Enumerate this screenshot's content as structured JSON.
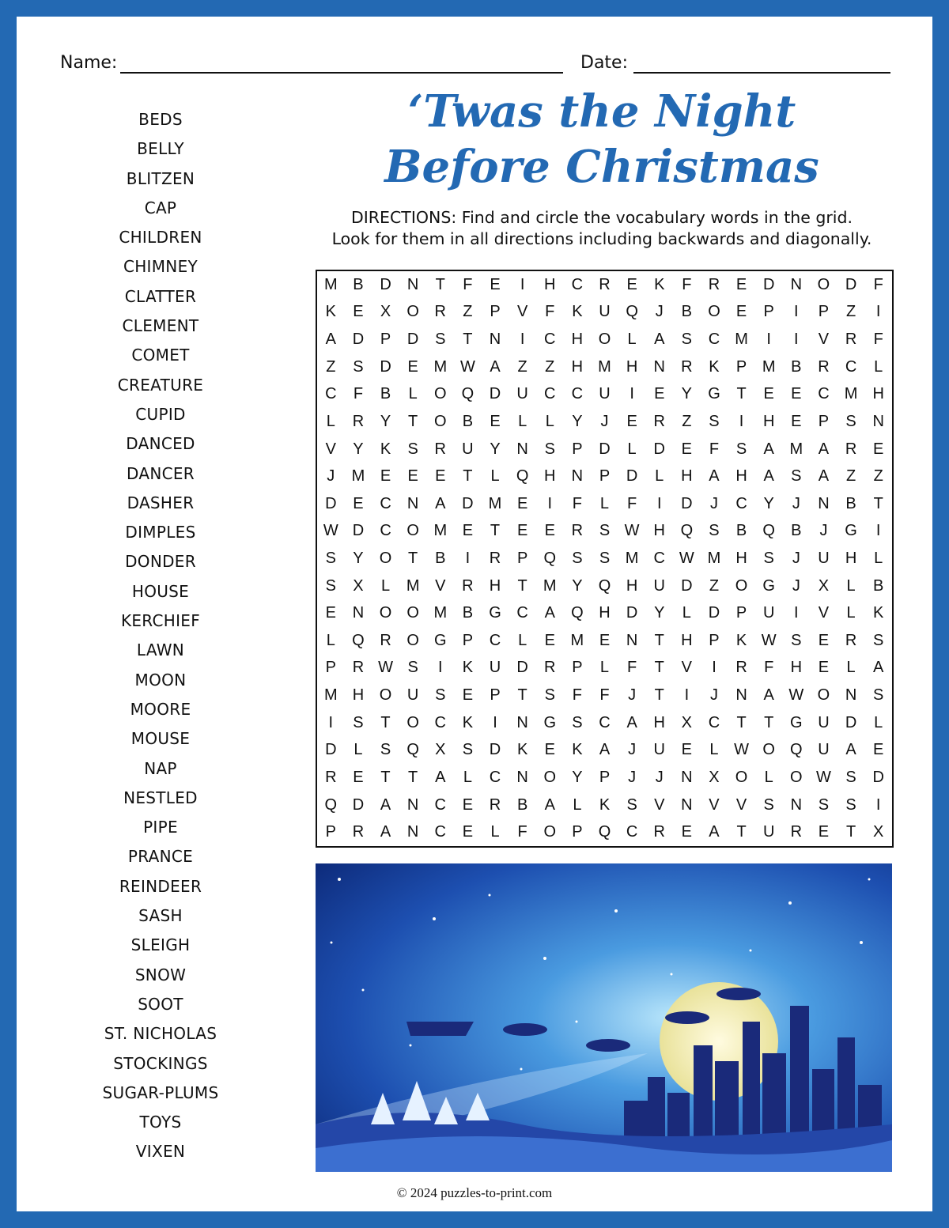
{
  "header": {
    "name_label": "Name:",
    "date_label": "Date:"
  },
  "title": {
    "line1": "‘Twas the Night",
    "line2": "Before Christmas"
  },
  "directions": {
    "line1": "DIRECTIONS:  Find and circle the vocabulary words in the grid.",
    "line2": "Look for them in all directions including backwards and diagonally."
  },
  "word_list": [
    "BEDS",
    "BELLY",
    "BLITZEN",
    "CAP",
    "CHILDREN",
    "CHIMNEY",
    "CLATTER",
    "CLEMENT",
    "COMET",
    "CREATURE",
    "CUPID",
    "DANCED",
    "DANCER",
    "DASHER",
    "DIMPLES",
    "DONDER",
    "HOUSE",
    "KERCHIEF",
    "LAWN",
    "MOON",
    "MOORE",
    "MOUSE",
    "NAP",
    "NESTLED",
    "PIPE",
    "PRANCE",
    "REINDEER",
    "SASH",
    "SLEIGH",
    "SNOW",
    "SOOT",
    "ST. NICHOLAS",
    "STOCKINGS",
    "SUGAR-PLUMS",
    "TOYS",
    "VIXEN"
  ],
  "grid": [
    "MBDNTFEIHCREKFREDNODF",
    "KEXORZPVFKUQJBOEPIPZI",
    "ADPDSTNICHOLASCMIIVRF",
    "ZSDEMWAZZHMHNRKPMBRCL",
    "CFBLOQDUCCUIEYGTEECMH",
    "LRYTOBELLYJERZSIHEPSN",
    "VYKSRUYNSPDLDEFSAMARE",
    "JMEEETLQHNPDLHAHASAZZ",
    "DECNADMEIFLFIDJCYJNBT",
    "WDCOMETEERSWHQSBQBJGI",
    "SYOTBIRPQSSMCWMHSJUHL",
    "SXLMVRHTMYQHUDZOGJXLB",
    "ENOOMBGCAQHDYLDPUIVLK",
    "LQROGPCLEMENTHPKWSERS",
    "PRWSIKUDRPLFTVIRFHELA",
    "MHOUSEPTSFFJTIJNAWONS",
    "ISTOCKINGSCAHXCTTGUDL",
    "DLSQXSDKEKAJUELWOQUAE",
    "RETTALCNOYPJJNXOLOWSD",
    "QDANCERBALKSVNVVSNSSI",
    "PRANCELFOPQCREATURETX"
  ],
  "footer": "© 2024 puzzles-to-print.com",
  "colors": {
    "border": "#2369b3",
    "title": "#2369b3",
    "sky_top": "#0d2a7a",
    "sky_glow": "#8fd0f5",
    "moon": "#f3efb8"
  }
}
